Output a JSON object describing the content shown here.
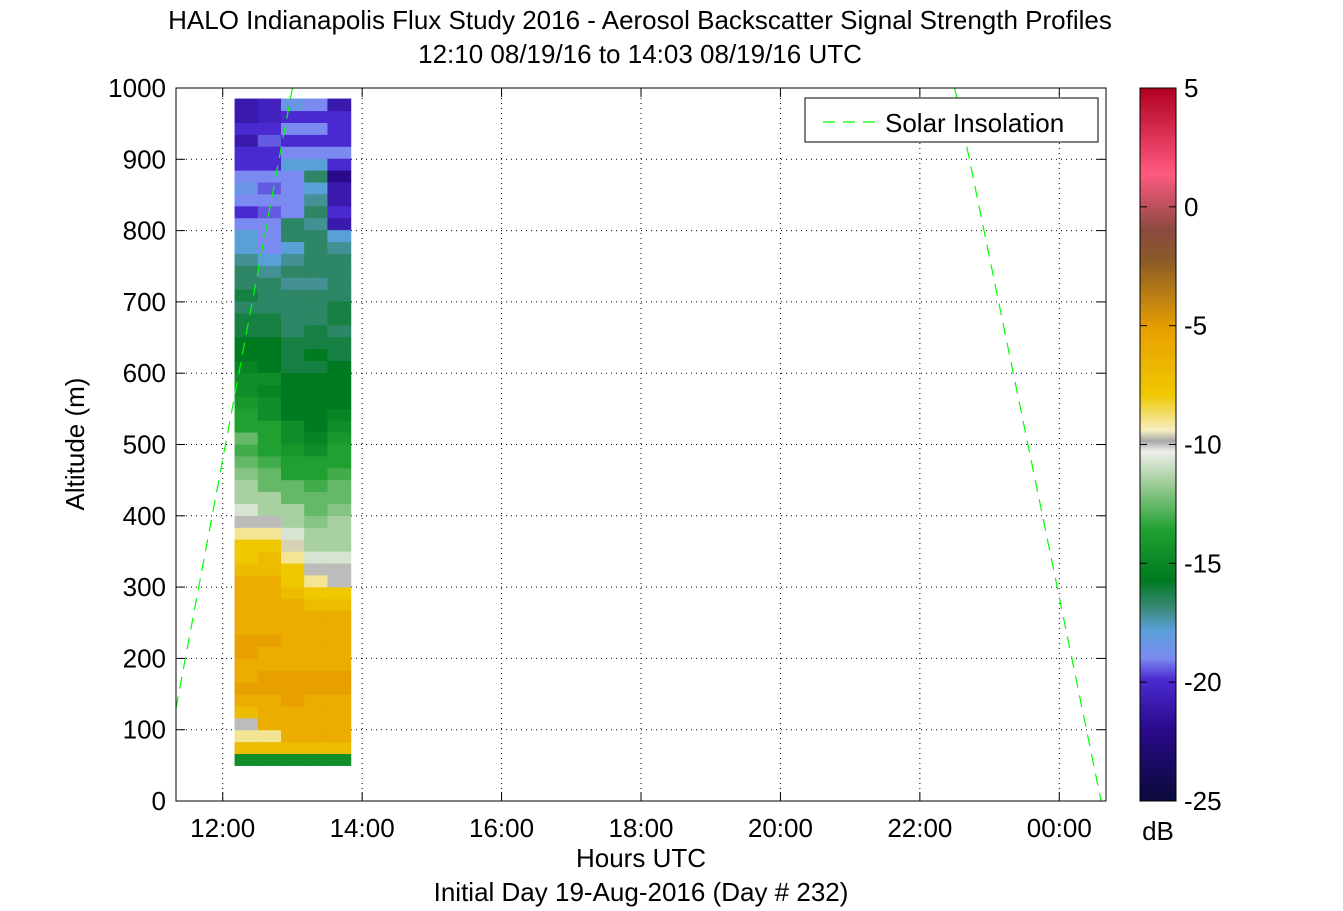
{
  "chart_data": {
    "type": "heatmap",
    "title": "HALO Indianapolis Flux Study 2016 - Aerosol Backscatter Signal Strength Profiles",
    "subtitle": "12:10 08/19/16 to 14:03 08/19/16  UTC",
    "xlabel": "Hours UTC",
    "xlabel2": "Initial Day 19-Aug-2016 (Day # 232)",
    "ylabel": "Altitude (m)",
    "xlim": [
      11.33,
      24.67
    ],
    "ylim": [
      0,
      1000
    ],
    "x_ticks": [
      12,
      14,
      16,
      18,
      20,
      22,
      24
    ],
    "x_tick_labels": [
      "12:00",
      "14:00",
      "16:00",
      "18:00",
      "20:00",
      "22:00",
      "00:00"
    ],
    "y_ticks": [
      0,
      100,
      200,
      300,
      400,
      500,
      600,
      700,
      800,
      900,
      1000
    ],
    "grid": true,
    "legend": {
      "entries": [
        "Solar Insolation"
      ],
      "placement": "top-right"
    },
    "colorbar": {
      "label": "dB",
      "min": -25,
      "max": 5,
      "ticks": [
        5,
        0,
        -5,
        -10,
        -15,
        -20,
        -25
      ]
    },
    "heatmap": {
      "x_start": 12.17,
      "x_step": 0.333,
      "y_start": 50,
      "y_step": 16.7,
      "columns": [
        [
          -15,
          -7,
          -9,
          -10,
          -7,
          -6,
          -5,
          -6,
          -6,
          -5,
          -5,
          -6,
          -6,
          -6,
          -6,
          -6,
          -7,
          -8,
          -8,
          -9,
          -10,
          -11,
          -12,
          -12,
          -12.5,
          -13,
          -13.5,
          -13,
          -14,
          -14,
          -14.5,
          -15,
          -15,
          -15.5,
          -16,
          -16,
          -16.5,
          -16.5,
          -17,
          -16.5,
          -17,
          -17,
          -17.5,
          -18,
          -18,
          -19,
          -20,
          -19,
          -18.5,
          -19,
          -20,
          -20,
          -21,
          -20,
          -21,
          -21
        ],
        [
          -15,
          -7,
          -9,
          -6,
          -6,
          -6,
          -5,
          -5,
          -6,
          -6,
          -5,
          -6,
          -6,
          -6,
          -6,
          -6,
          -7,
          -7,
          -8,
          -9,
          -10,
          -12,
          -12,
          -13,
          -13,
          -13.5,
          -14,
          -14,
          -14,
          -15,
          -15,
          -15.5,
          -15,
          -16,
          -16,
          -16,
          -16.5,
          -16.5,
          -17,
          -17,
          -17,
          -17.5,
          -18,
          -19,
          -19,
          -19,
          -19.5,
          -19,
          -19.5,
          -19,
          -20,
          -20,
          -19.5,
          -20,
          -20.5,
          -20.5
        ],
        [
          -15,
          -7,
          -6,
          -6,
          -6,
          -5,
          -5,
          -5,
          -6,
          -6,
          -6,
          -6,
          -6,
          -6,
          -7,
          -8,
          -8,
          -9,
          -9.5,
          -11,
          -12,
          -12,
          -13,
          -13,
          -14,
          -14,
          -14.5,
          -15,
          -15,
          -16,
          -16,
          -16,
          -16,
          -16.5,
          -16.5,
          -16.5,
          -17,
          -17,
          -17,
          -17,
          -17.5,
          -17,
          -17.5,
          -18,
          -17,
          -17,
          -19,
          -19,
          -19,
          -19,
          -18,
          -19,
          -20,
          -19,
          -20,
          -18.5
        ],
        [
          -15,
          -7,
          -6,
          -6,
          -6,
          -6,
          -5,
          -5,
          -6,
          -6,
          -6,
          -6,
          -6,
          -7,
          -8,
          -9,
          -10,
          -11,
          -12,
          -12,
          -12.5,
          -13,
          -13,
          -13.5,
          -14,
          -14,
          -15,
          -15.5,
          -16,
          -16,
          -16,
          -16,
          -16,
          -16.5,
          -16,
          -16.5,
          -16.5,
          -17,
          -17,
          -17,
          -17.5,
          -17,
          -17,
          -17,
          -17,
          -17.5,
          -17,
          -17.5,
          -18,
          -17,
          -18,
          -19,
          -20,
          -19,
          -20,
          -19
        ],
        [
          -15,
          -7,
          -6,
          -6,
          -6,
          -6,
          -5,
          -5,
          -6,
          -6,
          -6,
          -6,
          -6,
          -7,
          -8,
          -10,
          -10,
          -11,
          -12,
          -12,
          -12,
          -12.5,
          -13,
          -13,
          -13.5,
          -14,
          -14,
          -14.5,
          -15,
          -15.5,
          -16,
          -16,
          -16,
          -16,
          -16.5,
          -16.5,
          -17,
          -16.5,
          -16.5,
          -17,
          -17,
          -17,
          -17,
          -17.5,
          -18,
          -21,
          -20,
          -21,
          -21,
          -22,
          -20,
          -19,
          -20,
          -20,
          -20,
          -21
        ]
      ]
    },
    "solar_insolation": {
      "color": "#00ff00",
      "segments": [
        {
          "x": [
            11.33,
            13.0
          ],
          "y": [
            130,
            1000
          ]
        },
        {
          "x": [
            22.5,
            24.6
          ],
          "y": [
            1000,
            0
          ]
        }
      ]
    }
  }
}
